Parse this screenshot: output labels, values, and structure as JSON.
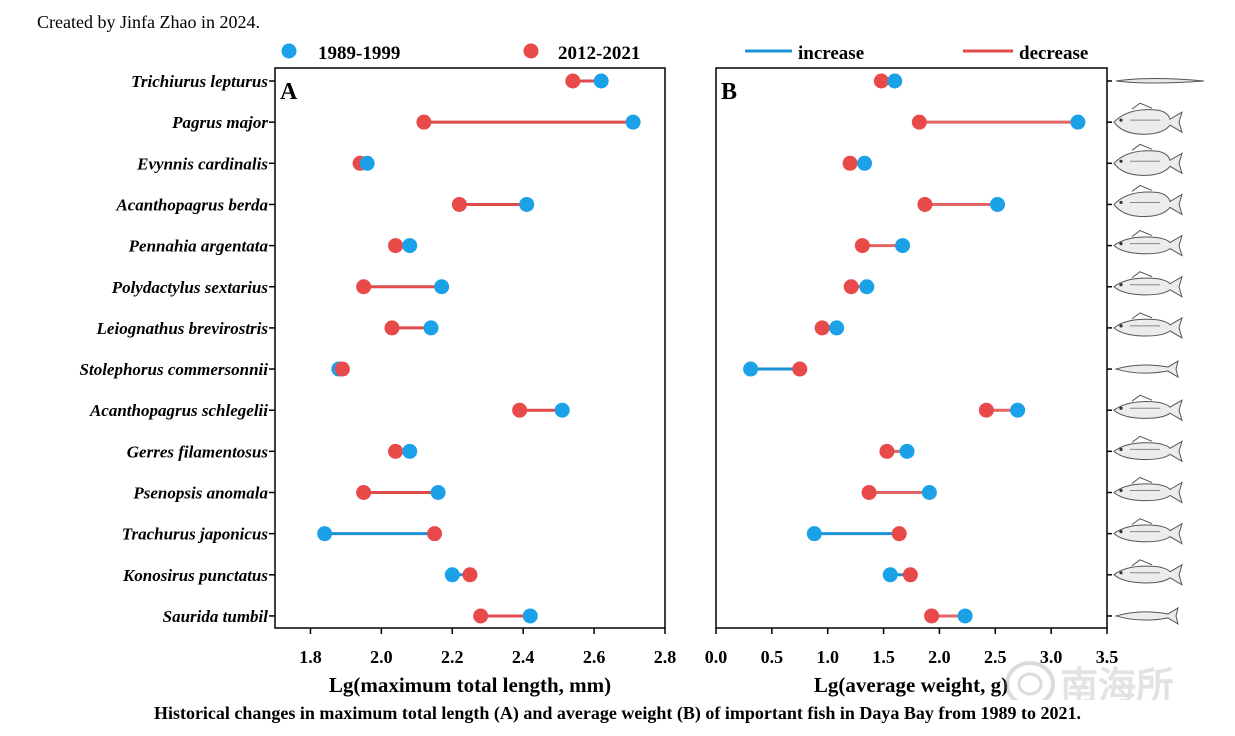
{
  "credit": "Created by Jinfa Zhao in 2024.",
  "caption": "Historical changes in maximum total length (A) and average weight (B) of important fish in Daya Bay from 1989 to 2021.",
  "watermark": "南海所",
  "colors": {
    "period_1989_1999": "#1BA1E8",
    "period_2012_2021": "#E84A4A",
    "increase": "#1B91D6",
    "decrease": "#E04B4B"
  },
  "legend": {
    "period_1989_1999": "1989-1999",
    "period_2012_2021": "2012-2021",
    "increase": "increase",
    "decrease": "decrease"
  },
  "chart_data": [
    {
      "type": "dumbbell",
      "panel_label": "A",
      "xlabel": "Lg(maximum total length, mm)",
      "xlim": [
        1.7,
        2.8
      ],
      "xticks": [
        "1.8",
        "2.0",
        "2.2",
        "2.4",
        "2.6",
        "2.8"
      ],
      "categories": [
        "Trichiurus lepturus",
        "Pagrus major",
        "Evynnis cardinalis",
        "Acanthopagrus berda",
        "Pennahia argentata",
        "Polydactylus sextarius",
        "Leiognathus brevirostris",
        "Stolephorus commersonnii",
        "Acanthopagrus schlegelii",
        "Gerres filamentosus",
        "Psenopsis anomala",
        "Trachurus japonicus",
        "Konosirus punctatus",
        "Saurida tumbil"
      ],
      "series": [
        {
          "name": "1989-1999",
          "values": [
            2.62,
            2.71,
            1.96,
            2.41,
            2.08,
            2.17,
            2.14,
            1.88,
            2.51,
            2.08,
            2.16,
            1.84,
            2.2,
            2.42
          ]
        },
        {
          "name": "2012-2021",
          "values": [
            2.54,
            2.12,
            1.94,
            2.22,
            2.04,
            1.95,
            2.03,
            1.89,
            2.39,
            2.04,
            1.95,
            2.15,
            2.25,
            2.28
          ]
        }
      ]
    },
    {
      "type": "dumbbell",
      "panel_label": "B",
      "xlabel": "Lg(average weight, g)",
      "xlim": [
        0.0,
        3.5
      ],
      "xticks": [
        "0.0",
        "0.5",
        "1.0",
        "1.5",
        "2.0",
        "2.5",
        "3.0",
        "3.5"
      ],
      "categories": [
        "Trichiurus lepturus",
        "Pagrus major",
        "Evynnis cardinalis",
        "Acanthopagrus berda",
        "Pennahia argentata",
        "Polydactylus sextarius",
        "Leiognathus brevirostris",
        "Stolephorus commersonnii",
        "Acanthopagrus schlegelii",
        "Gerres filamentosus",
        "Psenopsis anomala",
        "Trachurus japonicus",
        "Konosirus punctatus",
        "Saurida tumbil"
      ],
      "series": [
        {
          "name": "1989-1999",
          "values": [
            1.6,
            3.24,
            1.33,
            2.52,
            1.67,
            1.35,
            1.08,
            0.31,
            2.7,
            1.71,
            1.91,
            0.88,
            1.56,
            2.23
          ]
        },
        {
          "name": "2012-2021",
          "values": [
            1.48,
            1.82,
            1.2,
            1.87,
            1.31,
            1.21,
            0.95,
            0.75,
            2.42,
            1.53,
            1.37,
            1.64,
            1.74,
            1.93
          ]
        }
      ]
    }
  ]
}
